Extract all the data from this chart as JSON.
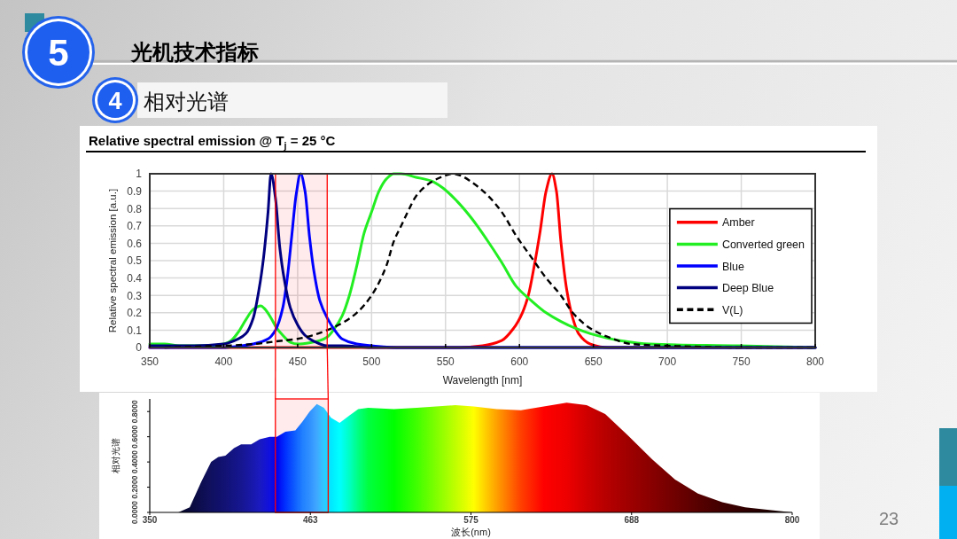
{
  "chart_data": [
    {
      "type": "other",
      "title": "光机技术指标",
      "subtitle": "相对光谱",
      "annotations": [
        "5",
        "4",
        "23"
      ]
    },
    {
      "type": "line",
      "title": "Relative spectral emission @ T$_{j}$ = 25 °C",
      "xlabel": "Wavelength [nm]",
      "ylabel": "Relative spectral emission [a.u.]",
      "xlim": [
        350,
        800
      ],
      "xticks": [
        350,
        400,
        450,
        500,
        550,
        600,
        650,
        700,
        750,
        800
      ],
      "ylim": [
        0,
        1
      ],
      "yticks": [
        0,
        0.1,
        0.2,
        0.3,
        0.4,
        0.5,
        0.6,
        0.7,
        0.8,
        0.9,
        1
      ],
      "grid": true,
      "legend": "right",
      "bands": [
        {
          "axis": "x",
          "from": 435,
          "to": 470,
          "color": "#ff0000"
        }
      ],
      "series": [
        {
          "name": "Amber",
          "color": "#ff0000",
          "x": [
            350,
            560,
            575,
            588,
            596,
            602,
            606,
            610,
            614,
            618,
            622,
            625,
            628,
            632,
            636,
            640,
            648,
            660,
            800
          ],
          "values": [
            0,
            0,
            0.01,
            0.04,
            0.11,
            0.2,
            0.3,
            0.47,
            0.67,
            0.9,
            1,
            0.9,
            0.61,
            0.33,
            0.17,
            0.08,
            0.02,
            0,
            0
          ]
        },
        {
          "name": "Converted green",
          "color": "#22ee22",
          "x": [
            350,
            360,
            370,
            390,
            400,
            405,
            410,
            415,
            420,
            425,
            428,
            432,
            436,
            440,
            445,
            450,
            460,
            465,
            470,
            475,
            480,
            485,
            490,
            495,
            500,
            505,
            510,
            515,
            520,
            530,
            540,
            548,
            558,
            568,
            578,
            588,
            598,
            608,
            618,
            628,
            638,
            648,
            668,
            688,
            748,
            800
          ],
          "values": [
            0.02,
            0.02,
            0.01,
            0.01,
            0.02,
            0.04,
            0.09,
            0.16,
            0.22,
            0.24,
            0.22,
            0.17,
            0.11,
            0.07,
            0.03,
            0.02,
            0.03,
            0.04,
            0.06,
            0.11,
            0.18,
            0.3,
            0.47,
            0.66,
            0.78,
            0.9,
            0.97,
            1,
            1,
            0.98,
            0.96,
            0.92,
            0.84,
            0.74,
            0.62,
            0.49,
            0.35,
            0.27,
            0.2,
            0.15,
            0.11,
            0.08,
            0.04,
            0.02,
            0.01,
            0
          ]
        },
        {
          "name": "Blue",
          "color": "#0000ff",
          "x": [
            350,
            400,
            420,
            430,
            435,
            440,
            443,
            446,
            449,
            452,
            455,
            458,
            461,
            465,
            470,
            475,
            480,
            490,
            500,
            520,
            800
          ],
          "values": [
            0,
            0,
            0.02,
            0.05,
            0.1,
            0.23,
            0.4,
            0.64,
            0.88,
            1,
            0.9,
            0.64,
            0.44,
            0.27,
            0.17,
            0.1,
            0.05,
            0.02,
            0.01,
            0,
            0
          ]
        },
        {
          "name": "Deep Blue",
          "color": "#000080",
          "x": [
            350,
            380,
            400,
            410,
            415,
            420,
            424,
            427,
            430,
            432,
            435,
            438,
            441,
            445,
            450,
            455,
            460,
            470,
            480,
            500,
            600,
            800
          ],
          "values": [
            0.01,
            0.01,
            0.02,
            0.05,
            0.08,
            0.17,
            0.34,
            0.52,
            0.78,
            1,
            0.86,
            0.57,
            0.39,
            0.23,
            0.13,
            0.07,
            0.04,
            0.01,
            0.01,
            0,
            0,
            0
          ]
        },
        {
          "name": "V(L)",
          "color": "#000000",
          "line_style": "dashed",
          "x": [
            360,
            400,
            420,
            440,
            450,
            460,
            470,
            480,
            490,
            500,
            510,
            515,
            520,
            525,
            530,
            540,
            550,
            555,
            560,
            568,
            578,
            588,
            598,
            608,
            618,
            628,
            636,
            648,
            660,
            676,
            700,
            750,
            800
          ],
          "values": [
            0,
            0.01,
            0.02,
            0.04,
            0.05,
            0.07,
            0.1,
            0.14,
            0.2,
            0.3,
            0.47,
            0.61,
            0.7,
            0.79,
            0.87,
            0.95,
            0.99,
            1,
            0.99,
            0.95,
            0.88,
            0.78,
            0.64,
            0.52,
            0.4,
            0.3,
            0.2,
            0.11,
            0.06,
            0.02,
            0.01,
            0,
            0
          ]
        }
      ]
    },
    {
      "type": "area",
      "xlabel": "波长(nm)",
      "ylabel": "相对光谱",
      "xlim": [
        350,
        800
      ],
      "xticks": [
        350,
        {
          "value": 462.5,
          "label": "463"
        },
        575,
        {
          "value": 687.5,
          "label": "688"
        },
        800
      ],
      "ylim": [
        0,
        0.9
      ],
      "yticks": [
        {
          "value": 0,
          "label": "0.0000"
        },
        {
          "value": 0.2,
          "label": "0.2000"
        },
        {
          "value": 0.4,
          "label": "0.4000"
        },
        {
          "value": 0.6,
          "label": "0.6000"
        },
        {
          "value": 0.8,
          "label": "0.8000"
        }
      ],
      "bands": [
        {
          "axis": "x",
          "from": 438,
          "to": 475,
          "color": "#ff0000"
        }
      ],
      "series": [
        {
          "x": [
            370,
            378,
            386,
            393,
            398,
            403,
            409,
            414,
            421,
            427,
            434,
            439,
            445,
            452,
            457,
            462,
            467,
            472,
            477,
            483,
            490,
            496,
            503,
            521,
            537,
            564,
            577,
            593,
            610,
            626,
            642,
            656,
            669,
            685,
            702,
            718,
            734,
            751,
            767,
            784,
            800
          ],
          "values": [
            0,
            0.04,
            0.24,
            0.4,
            0.44,
            0.45,
            0.51,
            0.54,
            0.54,
            0.58,
            0.6,
            0.6,
            0.64,
            0.65,
            0.72,
            0.8,
            0.86,
            0.83,
            0.75,
            0.71,
            0.77,
            0.82,
            0.83,
            0.82,
            0.83,
            0.85,
            0.84,
            0.82,
            0.81,
            0.84,
            0.87,
            0.85,
            0.78,
            0.61,
            0.42,
            0.26,
            0.15,
            0.08,
            0.04,
            0.02,
            0
          ],
          "colors": [
            "#05052a",
            "#0a0a3a",
            "#0d0d50",
            "#101060",
            "#10106a",
            "#121275",
            "#141485",
            "#161690",
            "#1818a8",
            "#1a1ac0",
            "#1010e0",
            "#0000f0",
            "#0030ff",
            "#1060ff",
            "#2080ff",
            "#3090ff",
            "#40a8ff",
            "#30c8ff",
            "#00e8ff",
            "#00ffff",
            "#00ffc0",
            "#00ff80",
            "#00ff40",
            "#00ff00",
            "#40ff00",
            "#c0ff00",
            "#ffff00",
            "#ffa000",
            "#ff4000",
            "#ff0000",
            "#ee0000",
            "#d00000",
            "#b80000",
            "#a00000",
            "#880000",
            "#700000",
            "#580000",
            "#400000",
            "#300000",
            "#200000",
            "#100000"
          ]
        }
      ]
    }
  ]
}
